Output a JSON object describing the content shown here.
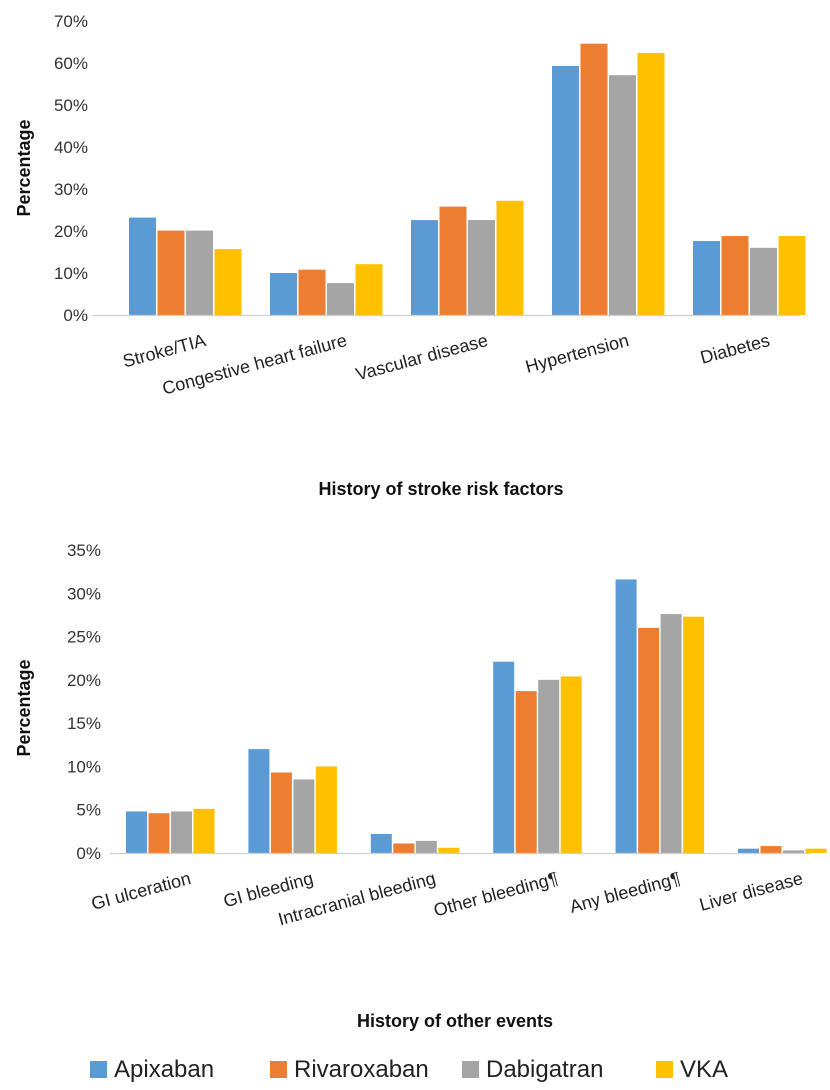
{
  "colors": {
    "Apixaban": "#5b9bd5",
    "Rivaroxaban": "#ed7d31",
    "Dabigatran": "#a5a5a5",
    "VKA": "#ffc000"
  },
  "legend": {
    "placement": "bottom-center",
    "items": [
      "Apixaban",
      "Rivaroxaban",
      "Dabigatran",
      "VKA"
    ]
  },
  "chart_data": [
    {
      "type": "bar",
      "title": "",
      "xlabel": "History of stroke risk factors",
      "ylabel": "Percentage",
      "ylim": [
        0,
        70
      ],
      "yticks": [
        "0%",
        "10%",
        "20%",
        "30%",
        "40%",
        "50%",
        "60%",
        "70%"
      ],
      "grid": false,
      "categories": [
        "Stroke/TIA",
        "Congestive heart failure",
        "Vascular disease",
        "Hypertension",
        "Diabetes"
      ],
      "series": [
        {
          "name": "Apixaban",
          "values": [
            23.2,
            10.0,
            22.6,
            59.3,
            17.6
          ]
        },
        {
          "name": "Rivaroxaban",
          "values": [
            20.1,
            10.8,
            25.8,
            64.6,
            18.8
          ]
        },
        {
          "name": "Dabigatran",
          "values": [
            20.1,
            7.6,
            22.6,
            57.1,
            16.0
          ]
        },
        {
          "name": "VKA",
          "values": [
            15.7,
            12.1,
            27.2,
            62.4,
            18.8
          ]
        }
      ]
    },
    {
      "type": "bar",
      "title": "",
      "xlabel": "History of other events",
      "ylabel": "Percentage",
      "ylim": [
        0,
        35
      ],
      "yticks": [
        "0%",
        "5%",
        "10%",
        "15%",
        "20%",
        "25%",
        "30%",
        "35%"
      ],
      "grid": false,
      "categories": [
        "GI ulceration",
        "GI bleeding",
        "Intracranial bleeding",
        "Other bleeding¶",
        "Any bleeding¶",
        "Liver disease"
      ],
      "series": [
        {
          "name": "Apixaban",
          "values": [
            4.8,
            12.0,
            2.2,
            22.1,
            31.6,
            0.5
          ]
        },
        {
          "name": "Rivaroxaban",
          "values": [
            4.6,
            9.3,
            1.1,
            18.7,
            26.0,
            0.8
          ]
        },
        {
          "name": "Dabigatran",
          "values": [
            4.8,
            8.5,
            1.4,
            20.0,
            27.6,
            0.3
          ]
        },
        {
          "name": "VKA",
          "values": [
            5.1,
            10.0,
            0.6,
            20.4,
            27.3,
            0.5
          ]
        }
      ]
    }
  ]
}
